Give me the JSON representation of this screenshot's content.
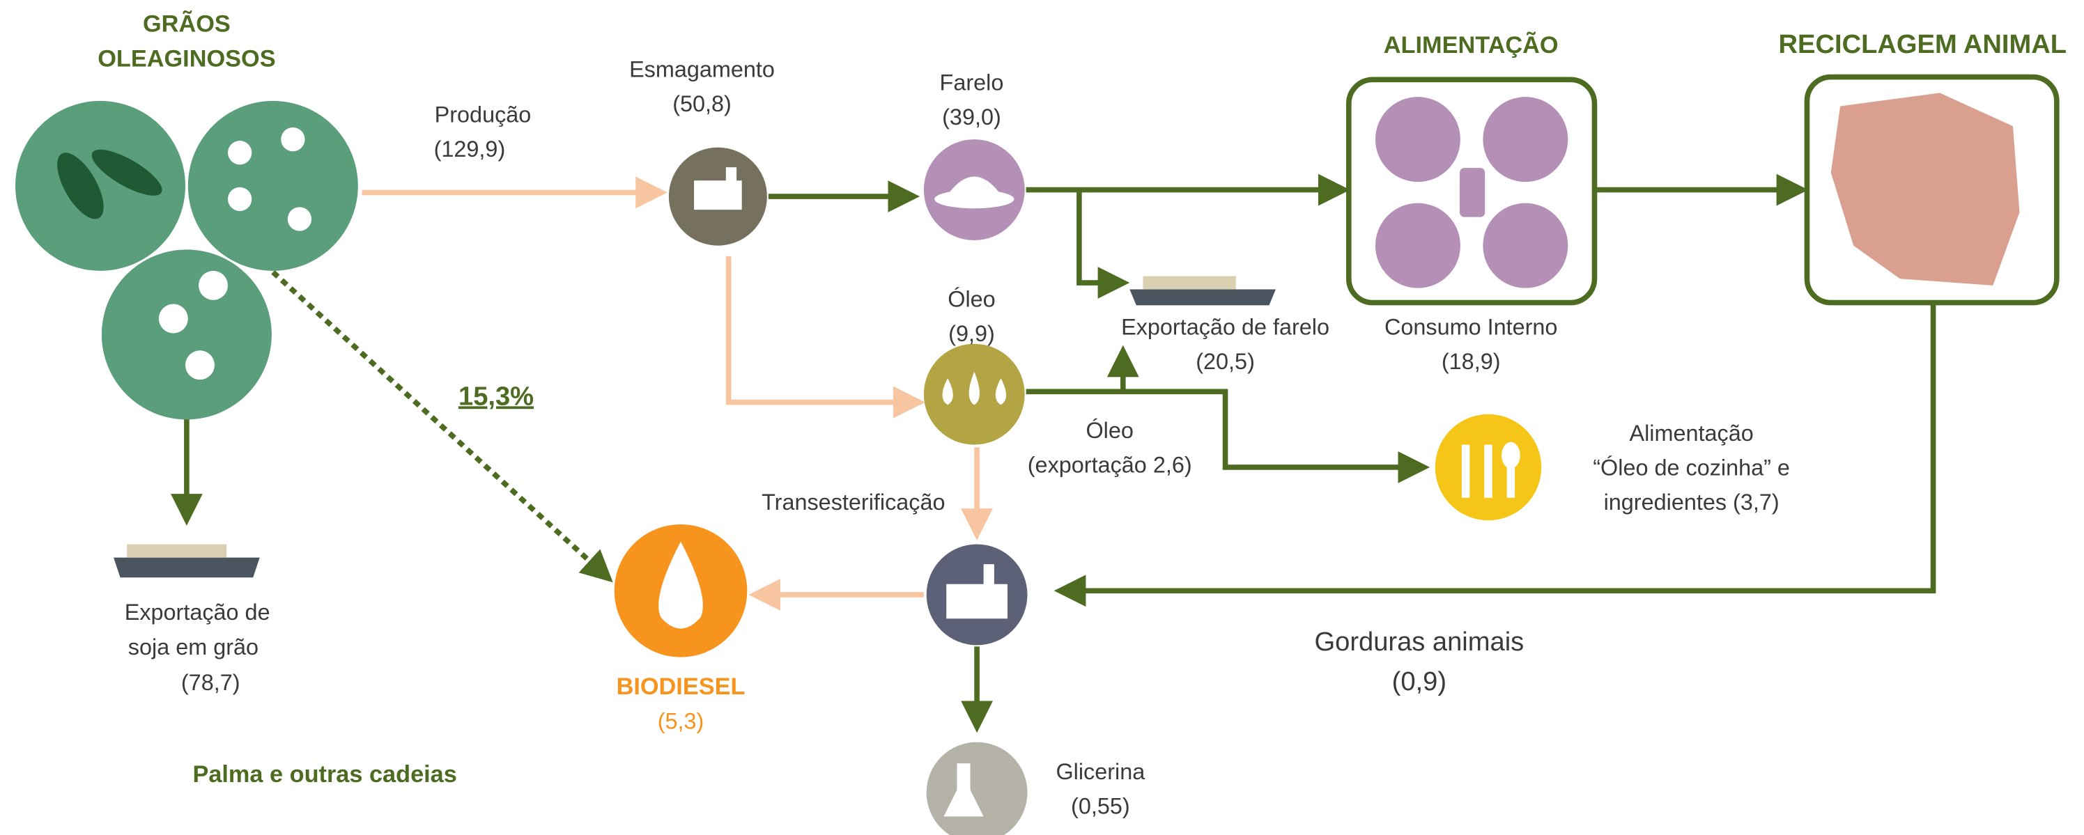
{
  "grains": {
    "title": [
      "GRÃOS",
      "OLEAGINOSOS"
    ]
  },
  "producao": [
    "Produção",
    "(129,9)"
  ],
  "esmagamento": [
    "Esmagamento",
    "(50,8)"
  ],
  "farelo": [
    "Farelo",
    "(39,0)"
  ],
  "alimentacao": {
    "title": "ALIMENTAÇÃO"
  },
  "reciclagem": {
    "title": "RECICLAGEM ANIMAL"
  },
  "oleo": [
    "Óleo",
    "(9,9)"
  ],
  "exportacao_farelo": [
    "Exportação de farelo",
    "(20,5)"
  ],
  "consumo_interno": [
    "Consumo Interno",
    "(18,9)"
  ],
  "share": "15,3%",
  "oleo_exportacao": [
    "Óleo",
    "(exportação 2,6)"
  ],
  "alimentacao_oleo": [
    "Alimentação",
    "“Óleo de cozinha” e",
    "ingredientes (3,7)"
  ],
  "transesterificacao": "Transesterificação",
  "exportacao_soja": [
    "Exportação  de",
    "soja em grão",
    "(78,7)"
  ],
  "biodiesel": [
    "BIODIESEL",
    "(5,3)"
  ],
  "gorduras": [
    "Gorduras animais",
    "(0,9)"
  ],
  "glicerina": [
    "Glicerina",
    "(0,55)"
  ],
  "palma": "Palma e outras cadeias"
}
